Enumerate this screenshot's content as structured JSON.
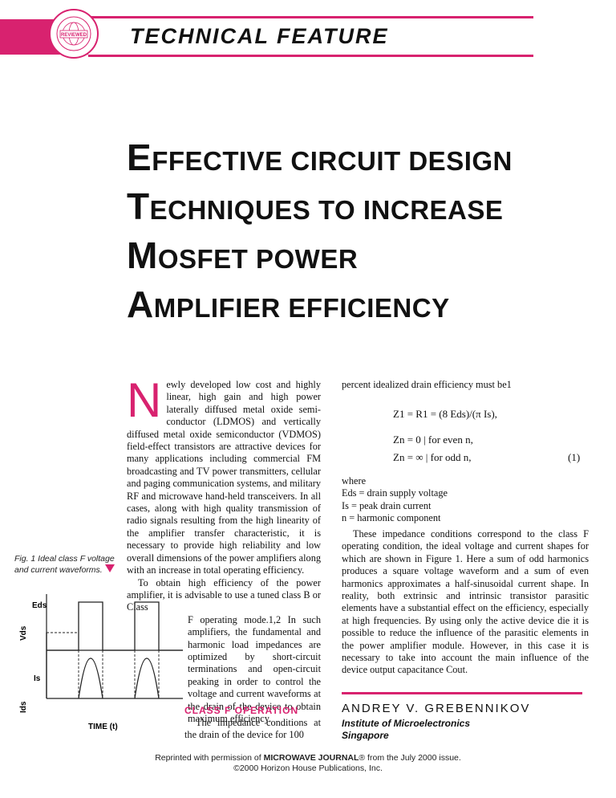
{
  "header": {
    "section": "TECHNICAL FEATURE",
    "seal_text": "MICROWAVE JOURNAL · REVIEWED · EXTERNAL BOARD"
  },
  "title": {
    "lines": [
      "Effective Circuit Design",
      "Techniques to Increase",
      "MOSFET Power",
      "Amplifier Efficiency"
    ]
  },
  "figure": {
    "caption": "Fig. 1 Ideal class F voltage and current waveforms.",
    "ylabel_v": "Vds",
    "ylabel_i": "Ids",
    "label_eds": "Eds",
    "label_is": "Is",
    "xlabel": "TIME (t)"
  },
  "body": {
    "dropcap": "N",
    "p1": "ewly developed low cost and highly linear, high gain and high power laterally diffused metal oxide semi-conductor (LDMOS) and vertically diffused metal oxide semiconductor (VDMOS) field-effect transistors are attractive devices for many applications including commercial FM broadcasting and TV power transmitters, cellular and paging communication systems, and military RF and microwave hand-held transceivers. In all cases, along with high quality transmission of radio signals resulting from the high linearity of the amplifier transfer characteristic, it is necessary to provide high reliability and low overall dimensions of the power amplifiers along with an increase in total operating efficiency.",
    "p2a": "To obtain high efficiency of the power amplifier, it is advisable to use a tuned class B or Class",
    "p2b": "F operating mode.1,2 In such amplifiers, the fundamental and harmonic load impedances are optimized by short-circuit terminations and open-circuit peaking in order to control the voltage and current waveforms at the drain of the device to obtain maximum efficiency.",
    "section_head": "CLASS F OPERATION",
    "p3": "The impedance conditions at the drain of the device for 100",
    "r1": "percent idealized drain efficiency must be1",
    "eq1": "Z1 = R1 = (8 Eds)/(π Is),",
    "eq2": "Zn = 0  |  for even n,",
    "eq3": "Zn = ∞  |  for odd n,",
    "eq_num": "(1)",
    "where": "where",
    "def1": "Eds = drain supply voltage",
    "def2": "Is  = peak drain current",
    "def3": "n   = harmonic component",
    "p4": "These impedance conditions correspond to the class F operating condition, the ideal voltage and current shapes for which are shown in Figure 1. Here a sum of odd harmonics produces a square voltage waveform and a sum of even harmonics approximates a half-sinusoidal current shape. In reality, both extrinsic and intrinsic transistor parasitic elements have a substantial effect on the efficiency, especially at high frequencies. By using only the active device die it is possible to reduce the influence of the parasitic elements in the power amplifier module. However, in this case it is necessary to take into account the main influence of the device output capacitance Cout."
  },
  "author": {
    "name": "ANDREY V. GREBENNIKOV",
    "affil1": "Institute of Microelectronics",
    "affil2": "Singapore"
  },
  "footer": {
    "pre": "Reprinted with permission of ",
    "brand": "MICROWAVE JOURNAL",
    "post": "® from the July 2000 issue.",
    "copy": "©2000 Horizon House Publications, Inc."
  },
  "colors": {
    "accent": "#d8226f"
  }
}
